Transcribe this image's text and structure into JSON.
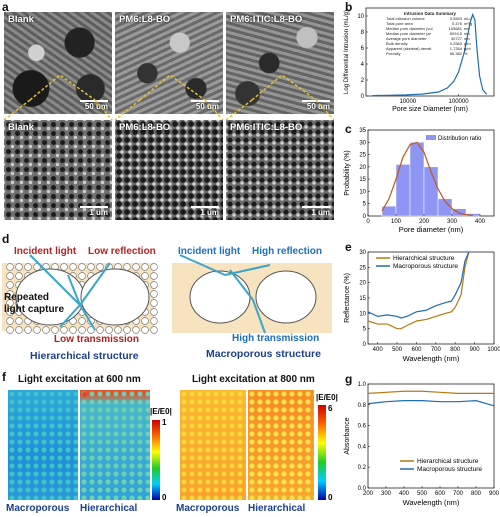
{
  "panels": {
    "a": "a",
    "b": "b",
    "c": "c",
    "d": "d",
    "e": "e",
    "f": "f",
    "g": "g"
  },
  "panel_a": {
    "top_labels": [
      "Blank",
      "PM6:L8-BO",
      "PM6:ITIC:L8-BO"
    ],
    "bottom_labels": [
      "Blank",
      "PM6:L8-BO",
      "PM6:ITIC:L8-BO"
    ],
    "top_scale": "50 um",
    "bottom_scale": "1 um"
  },
  "panel_b": {
    "table_title": "Intrusion Data Summary",
    "table_rows": [
      {
        "name": "Total intrusion volume",
        "value": "3.5553",
        "unit": "mL/"
      },
      {
        "name": "Total pore area",
        "value": "0.476",
        "unit": "m²/g"
      },
      {
        "name": "Median pore diameter (vol",
        "value": "105681",
        "unit": "nm"
      },
      {
        "name": "Median pore diameter (ar",
        "value": "6094.5",
        "unit": "nm"
      },
      {
        "name": "Average pore diameter",
        "value": "30727",
        "unit": "nm"
      },
      {
        "name": "Bulk density",
        "value": "0.2563",
        "unit": "g/m"
      },
      {
        "name": "Apparent (skeletal) densit",
        "value": "1.7354",
        "unit": "g/m"
      },
      {
        "name": "Porosity",
        "value": "66.382",
        "unit": "%"
      }
    ]
  },
  "panel_d": {
    "left": {
      "incident": "Incident light",
      "low_reflection": "Low reflection",
      "repeated": "Repeated",
      "light_capture": "light capture",
      "low_transmission": "Low transmission",
      "caption": "Hierarchical structure"
    },
    "right": {
      "incident": "Incident light",
      "high_reflection": "High reflection",
      "high_transmission": "High transmission",
      "caption": "Macroporous structure"
    }
  },
  "panel_f": {
    "title_left": "Light excitation at 600 nm",
    "title_right": "Light excitation at 800 nm",
    "colorbar_label": "|E/E0|",
    "left_bar": {
      "max": "1",
      "min": "0"
    },
    "right_bar": {
      "max": "6",
      "min": "0"
    },
    "labels_left": [
      "Macroporous",
      "Hierarchical"
    ],
    "labels_right": [
      "Macroporous",
      "Hierarchical"
    ]
  },
  "colors": {
    "blue_curve": "#1f6db3",
    "brown_curve": "#b5790f",
    "hist_fill": "#8f95f2",
    "fit_curve": "#c0561f",
    "text_red": "#b22222",
    "text_blue": "#1e6fbf",
    "text_dark_blue": "#1c3f8f"
  },
  "chart_data": [
    {
      "panel": "b",
      "type": "line",
      "xlabel": "Pore size Diameter (nm)",
      "ylabel": "Log Differential Intrusion (mL/g)",
      "x_scale": "log",
      "x_ticks": [
        "10000",
        "100000"
      ],
      "y_ticks": [
        "0",
        "2",
        "4",
        "6",
        "8",
        "10"
      ],
      "ylim": [
        0,
        11
      ],
      "x": [
        2000,
        5000,
        10000,
        20000,
        40000,
        60000,
        80000,
        100000,
        130000,
        150000,
        170000,
        190000,
        210000,
        230000,
        260000,
        300000,
        360000
      ],
      "y": [
        0.05,
        0.1,
        0.15,
        0.25,
        0.5,
        1.0,
        1.8,
        3.0,
        5.5,
        7.5,
        9.2,
        10.2,
        9.5,
        6.0,
        2.5,
        0.8,
        0.2
      ]
    },
    {
      "panel": "c",
      "type": "bar",
      "xlabel": "Pore diameter (nm)",
      "ylabel": "Probability (%)",
      "legend": "Distribution ratio",
      "x_ticks": [
        "0",
        "100",
        "200",
        "300",
        "400"
      ],
      "y_ticks": [
        "0",
        "5",
        "10",
        "15",
        "20",
        "25",
        "30",
        "35"
      ],
      "ylim": [
        0,
        35
      ],
      "bin_edges": [
        50,
        100,
        150,
        200,
        250,
        300,
        350,
        400
      ],
      "values": [
        4,
        21,
        30,
        20,
        7,
        3,
        1
      ],
      "fit_x": [
        50,
        75,
        100,
        125,
        150,
        175,
        200,
        225,
        250,
        275,
        300,
        325,
        350,
        375
      ],
      "fit_y": [
        2,
        7,
        15,
        24,
        29,
        30,
        26,
        18,
        11,
        6,
        3,
        1.2,
        0.5,
        0.2
      ]
    },
    {
      "panel": "e",
      "type": "line",
      "xlabel": "Wavelength (nm)",
      "ylabel": "Reflectance (%)",
      "x_ticks": [
        "400",
        "500",
        "600",
        "700",
        "800",
        "900",
        "1000"
      ],
      "y_ticks": [
        "0",
        "5",
        "10",
        "15",
        "20",
        "25",
        "30"
      ],
      "xlim": [
        350,
        1000
      ],
      "ylim": [
        0,
        30
      ],
      "series": [
        {
          "name": "Hierarchical structure",
          "x": [
            350,
            400,
            450,
            500,
            520,
            550,
            600,
            650,
            700,
            750,
            780,
            800,
            830,
            850,
            870
          ],
          "y": [
            7.5,
            6.5,
            6.5,
            5.0,
            5.0,
            6.0,
            7.5,
            8.0,
            9.0,
            10.0,
            10.5,
            12,
            16,
            25,
            30
          ]
        },
        {
          "name": "Macroporous structure",
          "x": [
            350,
            400,
            450,
            500,
            520,
            550,
            600,
            650,
            700,
            750,
            780,
            800,
            830,
            850,
            870
          ],
          "y": [
            10.5,
            9.0,
            9.5,
            9.0,
            8.5,
            9.0,
            10.5,
            11.0,
            12.5,
            13.5,
            14,
            16,
            20,
            27,
            30
          ]
        }
      ]
    },
    {
      "panel": "g",
      "type": "line",
      "xlabel": "Wavelength (nm)",
      "ylabel": "Absorbance",
      "x_ticks": [
        "200",
        "300",
        "400",
        "500",
        "600",
        "700",
        "800",
        "900"
      ],
      "y_ticks": [
        "0.0",
        "0.2",
        "0.4",
        "0.6",
        "0.8",
        "1.0"
      ],
      "xlim": [
        200,
        900
      ],
      "ylim": [
        0,
        1.0
      ],
      "series": [
        {
          "name": "Hierarchical structure",
          "x": [
            200,
            300,
            400,
            500,
            600,
            700,
            800,
            900
          ],
          "y": [
            0.91,
            0.92,
            0.93,
            0.93,
            0.92,
            0.91,
            0.91,
            0.91
          ]
        },
        {
          "name": "Macroporous structure",
          "x": [
            200,
            300,
            400,
            500,
            600,
            700,
            800,
            900
          ],
          "y": [
            0.81,
            0.83,
            0.84,
            0.84,
            0.83,
            0.83,
            0.84,
            0.79
          ]
        }
      ]
    }
  ]
}
